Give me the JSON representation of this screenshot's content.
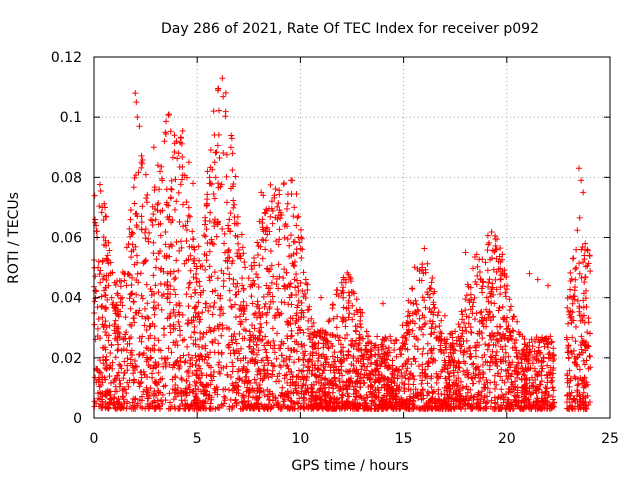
{
  "chart_data": {
    "type": "scatter",
    "title": "Day 286 of 2021, Rate Of TEC Index for receiver p092",
    "xlabel": "GPS time / hours",
    "ylabel": "ROTI / TECUs",
    "xlim": [
      0,
      25
    ],
    "ylim": [
      0,
      0.12
    ],
    "xticks": [
      0,
      5,
      10,
      15,
      20,
      25
    ],
    "yticks": [
      0,
      0.02,
      0.04,
      0.06,
      0.08,
      0.1,
      0.12
    ],
    "xtick_labels": [
      "0",
      "5",
      "10",
      "15",
      "20",
      "25"
    ],
    "ytick_labels": [
      "0",
      "0.02",
      "0.04",
      "0.06",
      "0.08",
      "0.1",
      "0.12"
    ],
    "grid": true,
    "marker": "+",
    "color": "#ff0000",
    "data_gap_hours": [
      22.3,
      22.9
    ],
    "series": [
      {
        "x": [
          0.05,
          0.1,
          0.15,
          0.2,
          0.4,
          0.6,
          0.3,
          2.0,
          2.05,
          2.1,
          2.2,
          2.3,
          2.9,
          3.1,
          3.2,
          3.9,
          4.0,
          4.1,
          5.8,
          5.85,
          5.9,
          5.5,
          5.6,
          5.65,
          6.0,
          6.3,
          6.6,
          4.6,
          4.8,
          8.1,
          8.2,
          8.3,
          8.5,
          9.6,
          9.7,
          9.8,
          9.9,
          12.2,
          15.9,
          16.5,
          18.0,
          19.5,
          19.6,
          21.1,
          21.5,
          22.0,
          23.5,
          23.6,
          23.7,
          23.8,
          23.9,
          1.0,
          1.5,
          3.0,
          7.0,
          11.0,
          13.0,
          14.0,
          17.0,
          19.0,
          20.5
        ],
        "y": [
          0.066,
          0.064,
          0.06,
          0.05,
          0.07,
          0.053,
          0.045,
          0.108,
          0.105,
          0.1,
          0.097,
          0.085,
          0.09,
          0.084,
          0.082,
          0.094,
          0.092,
          0.088,
          0.102,
          0.085,
          0.08,
          0.082,
          0.08,
          0.078,
          0.065,
          0.058,
          0.062,
          0.085,
          0.078,
          0.075,
          0.074,
          0.068,
          0.062,
          0.079,
          0.07,
          0.064,
          0.06,
          0.045,
          0.05,
          0.042,
          0.055,
          0.056,
          0.052,
          0.048,
          0.046,
          0.044,
          0.083,
          0.079,
          0.075,
          0.058,
          0.056,
          0.045,
          0.048,
          0.05,
          0.042,
          0.04,
          0.035,
          0.038,
          0.034,
          0.036,
          0.032
        ]
      }
    ]
  }
}
